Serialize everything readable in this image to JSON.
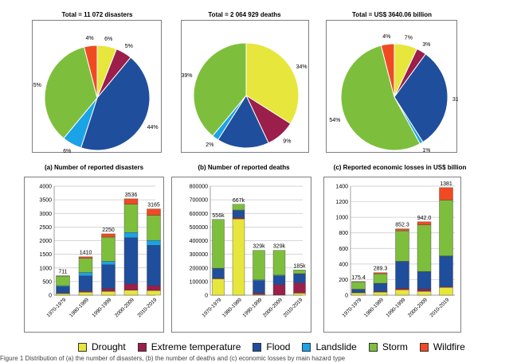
{
  "colors": {
    "Drought": "#e6e63c",
    "Extreme temperature": "#9c1e4a",
    "Flood": "#1f4e9c",
    "Landslide": "#1aa3e6",
    "Storm": "#7dbf3c",
    "Wildfire": "#f04a23"
  },
  "legend": [
    "Drought",
    "Extreme temperature",
    "Flood",
    "Landslide",
    "Storm",
    "Wildfire"
  ],
  "footer_text": "Figure 1  Distribution of (a) the number of disasters, (b) the number of deaths and (c) economic losses by main hazard type",
  "chart_data": [
    {
      "type": "pie",
      "title": "Total = 11 072 disasters",
      "caption": "(a) Number of reported disasters",
      "slices": [
        {
          "name": "Drought",
          "value": 6,
          "label": "6%"
        },
        {
          "name": "Extreme temperature",
          "value": 5,
          "label": "5%"
        },
        {
          "name": "Flood",
          "value": 44,
          "label": "44%"
        },
        {
          "name": "Landslide",
          "value": 6,
          "label": "6%"
        },
        {
          "name": "Storm",
          "value": 35,
          "label": "35%"
        },
        {
          "name": "Wildfire",
          "value": 4,
          "label": "4%"
        }
      ]
    },
    {
      "type": "pie",
      "title": "Total =  2 064 929 deaths",
      "caption": "(b) Number of reported deaths",
      "slices": [
        {
          "name": "Drought",
          "value": 34,
          "label": "34%"
        },
        {
          "name": "Extreme temperature",
          "value": 9,
          "label": "9%"
        },
        {
          "name": "Flood",
          "value": 16,
          "label": "16%"
        },
        {
          "name": "Landslide",
          "value": 2,
          "label": "2%"
        },
        {
          "name": "Storm",
          "value": 39,
          "label": "39%"
        }
      ]
    },
    {
      "type": "pie",
      "title": "Total =  US$ 3640.06 billion",
      "caption": "(c) Reported economic losses in US$ billion",
      "slices": [
        {
          "name": "Drought",
          "value": 7,
          "label": "7%"
        },
        {
          "name": "Extreme temperature",
          "value": 3,
          "label": "3%"
        },
        {
          "name": "Flood",
          "value": 31,
          "label": "31%"
        },
        {
          "name": "Landslide",
          "value": 1,
          "label": "1%"
        },
        {
          "name": "Storm",
          "value": 54,
          "label": "54%"
        },
        {
          "name": "Wildfire",
          "value": 4,
          "label": "4%"
        }
      ]
    },
    {
      "type": "bar",
      "stacked": true,
      "categories": [
        "1970-1979",
        "1980-1989",
        "1990-1999",
        "2000-2009",
        "2010-2019"
      ],
      "ylim": [
        0,
        4000
      ],
      "yticks": [
        0,
        500,
        1000,
        1500,
        2000,
        2500,
        3000,
        3500,
        4000
      ],
      "ytick_labels": [
        "0",
        "500",
        "1000",
        "1500",
        "2000",
        "2500",
        "3000",
        "3500",
        "4000"
      ],
      "totals": [
        "711",
        "1410",
        "2250",
        "3536",
        "3165"
      ],
      "series": [
        {
          "name": "Drought",
          "values": [
            60,
            110,
            140,
            180,
            170
          ]
        },
        {
          "name": "Extreme temperature",
          "values": [
            20,
            40,
            100,
            230,
            180
          ]
        },
        {
          "name": "Flood",
          "values": [
            230,
            560,
            880,
            1700,
            1480
          ]
        },
        {
          "name": "Landslide",
          "values": [
            40,
            120,
            120,
            190,
            180
          ]
        },
        {
          "name": "Storm",
          "values": [
            350,
            520,
            890,
            1040,
            920
          ]
        },
        {
          "name": "Wildfire",
          "values": [
            11,
            60,
            120,
            196,
            235
          ]
        }
      ]
    },
    {
      "type": "bar",
      "stacked": true,
      "categories": [
        "1970-1979",
        "1980-1989",
        "1990-1999",
        "2000-2009",
        "2010-2019"
      ],
      "ylim": [
        0,
        800000
      ],
      "yticks": [
        0,
        100000,
        200000,
        300000,
        400000,
        500000,
        600000,
        700000,
        800000
      ],
      "ytick_labels": [
        "0",
        "100000",
        "200000",
        "300000",
        "400000",
        "500000",
        "600000",
        "700000",
        "800000"
      ],
      "totals": [
        "556k",
        "667k",
        "329k",
        "329k",
        "185k"
      ],
      "series": [
        {
          "name": "Drought",
          "values": [
            120000,
            560000,
            5000,
            2000,
            15000
          ]
        },
        {
          "name": "Extreme temperature",
          "values": [
            5000,
            10000,
            12000,
            75000,
            75000
          ]
        },
        {
          "name": "Flood",
          "values": [
            70000,
            50000,
            90000,
            65000,
            65000
          ]
        },
        {
          "name": "Landslide",
          "values": [
            3000,
            5000,
            5000,
            5000,
            3000
          ]
        },
        {
          "name": "Storm",
          "values": [
            358000,
            42000,
            217000,
            182000,
            27000
          ]
        }
      ]
    },
    {
      "type": "bar",
      "stacked": true,
      "categories": [
        "1970-1979",
        "1980-1989",
        "1990-1999",
        "2000-2009",
        "2010-2019"
      ],
      "ylim": [
        0,
        1400
      ],
      "yticks": [
        0,
        200,
        400,
        600,
        800,
        1000,
        1200,
        1400
      ],
      "ytick_labels": [
        "0",
        "200",
        "400",
        "600",
        "800",
        "1000",
        "1200",
        "1400"
      ],
      "totals": [
        "175.4",
        "289.3",
        "852.3",
        "942.0",
        "1381"
      ],
      "series": [
        {
          "name": "Drought",
          "values": [
            30,
            40,
            70,
            50,
            100
          ]
        },
        {
          "name": "Extreme temperature",
          "values": [
            5,
            10,
            20,
            30,
            10
          ]
        },
        {
          "name": "Flood",
          "values": [
            40,
            100,
            340,
            220,
            390
          ]
        },
        {
          "name": "Landslide",
          "values": [
            2,
            3,
            5,
            5,
            5
          ]
        },
        {
          "name": "Storm",
          "values": [
            93.4,
            121.3,
            392.3,
            597,
            716
          ]
        },
        {
          "name": "Wildfire",
          "values": [
            5,
            15,
            25,
            40,
            160
          ]
        }
      ]
    }
  ]
}
